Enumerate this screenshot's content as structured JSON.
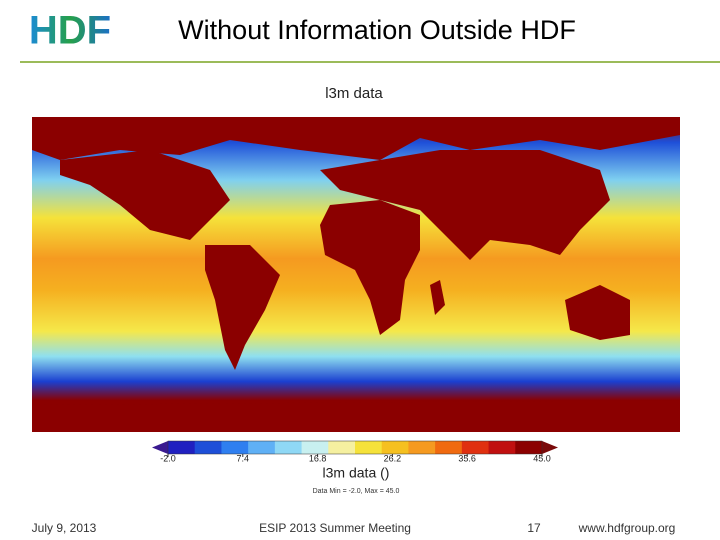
{
  "header": {
    "logo": "HDF",
    "title": "Without Information Outside HDF"
  },
  "figure": {
    "title": "l3m data",
    "colorbar": {
      "ticks": [
        "-2.0",
        "7.4",
        "16.8",
        "26.2",
        "35.6",
        "45.0"
      ],
      "label": "l3m data ()",
      "note": "Data Min = -2.0, Max = 45.0"
    }
  },
  "footer": {
    "date": "July 9, 2013",
    "event": "ESIP 2013 Summer Meeting",
    "page": "17",
    "url": "www.hdfgroup.org"
  }
}
